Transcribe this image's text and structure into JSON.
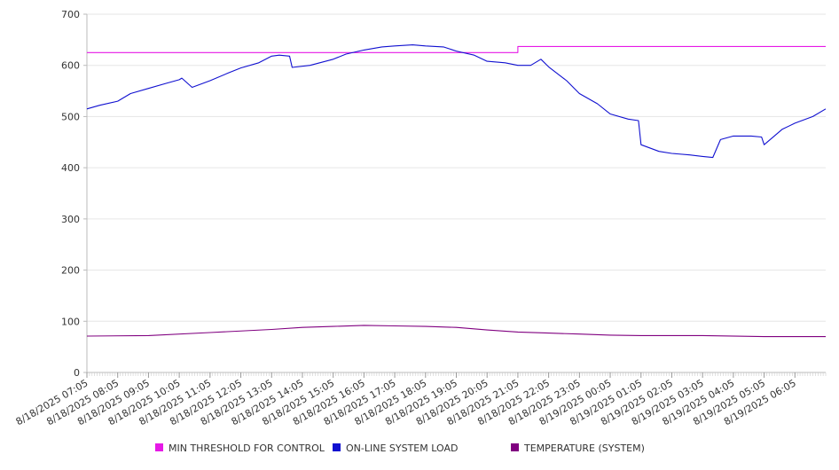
{
  "chart_data": {
    "type": "line",
    "title": "",
    "xlabel": "",
    "ylabel": "",
    "ylim": [
      0,
      700
    ],
    "yticks": [
      0,
      100,
      200,
      300,
      400,
      500,
      600,
      700
    ],
    "grid": true,
    "legend_position": "bottom",
    "x_tick_labels": [
      "8/18/2025 07:05",
      "8/18/2025 08:05",
      "8/18/2025 09:05",
      "8/18/2025 10:05",
      "8/18/2025 11:05",
      "8/18/2025 12:05",
      "8/18/2025 13:05",
      "8/18/2025 14:05",
      "8/18/2025 15:05",
      "8/18/2025 16:05",
      "8/18/2025 17:05",
      "8/18/2025 18:05",
      "8/18/2025 19:05",
      "8/18/2025 20:05",
      "8/18/2025 21:05",
      "8/18/2025 22:05",
      "8/18/2025 23:05",
      "8/19/2025 00:05",
      "8/19/2025 01:05",
      "8/19/2025 02:05",
      "8/19/2025 03:05",
      "8/19/2025 04:05",
      "8/19/2025 05:05",
      "8/19/2025 06:05"
    ],
    "series": [
      {
        "name": "MIN THRESHOLD FOR CONTROL",
        "color": "#e619e6",
        "x": [
          "8/18/2025 07:05",
          "8/18/2025 21:05",
          "8/18/2025 21:05",
          "8/19/2025 07:05"
        ],
        "values": [
          625,
          625,
          637,
          637
        ]
      },
      {
        "name": "ON-LINE SYSTEM LOAD",
        "color": "#1010d0",
        "x": [
          "8/18/2025 07:05",
          "8/18/2025 07:30",
          "8/18/2025 08:05",
          "8/18/2025 08:30",
          "8/18/2025 09:05",
          "8/18/2025 09:40",
          "8/18/2025 10:05",
          "8/18/2025 10:10",
          "8/18/2025 10:30",
          "8/18/2025 11:05",
          "8/18/2025 11:40",
          "8/18/2025 12:05",
          "8/18/2025 12:40",
          "8/18/2025 13:05",
          "8/18/2025 13:20",
          "8/18/2025 13:40",
          "8/18/2025 13:45",
          "8/18/2025 14:20",
          "8/18/2025 15:05",
          "8/18/2025 15:30",
          "8/18/2025 16:05",
          "8/18/2025 16:40",
          "8/18/2025 17:05",
          "8/18/2025 17:40",
          "8/18/2025 18:05",
          "8/18/2025 18:40",
          "8/18/2025 19:05",
          "8/18/2025 19:40",
          "8/18/2025 20:05",
          "8/18/2025 20:40",
          "8/18/2025 21:05",
          "8/18/2025 21:30",
          "8/18/2025 21:50",
          "8/18/2025 22:05",
          "8/18/2025 22:40",
          "8/18/2025 23:05",
          "8/18/2025 23:40",
          "8/19/2025 00:05",
          "8/19/2025 00:40",
          "8/19/2025 01:00",
          "8/19/2025 01:05",
          "8/19/2025 01:40",
          "8/19/2025 02:05",
          "8/19/2025 02:40",
          "8/19/2025 03:05",
          "8/19/2025 03:25",
          "8/19/2025 03:40",
          "8/19/2025 04:05",
          "8/19/2025 04:40",
          "8/19/2025 05:00",
          "8/19/2025 05:05",
          "8/19/2025 05:40",
          "8/19/2025 06:05",
          "8/19/2025 06:40",
          "8/19/2025 07:05"
        ],
        "values": [
          515,
          522,
          530,
          545,
          555,
          565,
          572,
          575,
          557,
          570,
          585,
          595,
          605,
          618,
          620,
          618,
          596,
          600,
          612,
          622,
          630,
          636,
          638,
          640,
          638,
          636,
          628,
          620,
          608,
          605,
          600,
          600,
          612,
          597,
          570,
          545,
          525,
          505,
          495,
          492,
          445,
          432,
          428,
          425,
          422,
          420,
          455,
          462,
          462,
          460,
          445,
          475,
          487,
          500,
          515
        ]
      },
      {
        "name": "TEMPERATURE (SYSTEM)",
        "color": "#800080",
        "x": [
          "8/18/2025 07:05",
          "8/18/2025 09:05",
          "8/18/2025 11:05",
          "8/18/2025 13:05",
          "8/18/2025 14:05",
          "8/18/2025 15:05",
          "8/18/2025 16:05",
          "8/18/2025 17:05",
          "8/18/2025 18:05",
          "8/18/2025 19:05",
          "8/18/2025 20:05",
          "8/18/2025 21:05",
          "8/18/2025 22:05",
          "8/18/2025 23:05",
          "8/19/2025 00:05",
          "8/19/2025 01:05",
          "8/19/2025 03:05",
          "8/19/2025 05:05",
          "8/19/2025 07:05"
        ],
        "values": [
          71,
          72,
          78,
          84,
          88,
          90,
          92,
          91,
          90,
          88,
          83,
          79,
          77,
          75,
          73,
          72,
          72,
          70,
          70
        ]
      }
    ]
  }
}
